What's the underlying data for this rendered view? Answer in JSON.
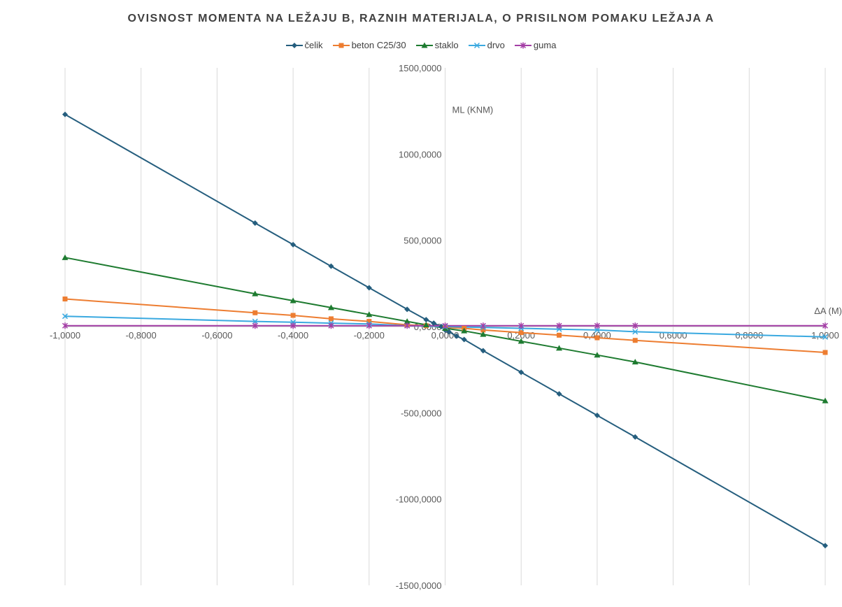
{
  "chart_data": {
    "type": "scatter",
    "title": "OVISNOST MOMENTA NA LEŽAJU B, RAZNIH MATERIJALA, O PRISILNOM POMAKU LEŽAJA A",
    "xlabel": "ΔA (M)",
    "ylabel": "ML (KNM)",
    "xlim": [
      -1.0,
      1.0
    ],
    "ylim": [
      -1500,
      1500
    ],
    "x_ticks": [
      -1.0,
      -0.8,
      -0.6,
      -0.4,
      -0.2,
      0.0,
      0.2,
      0.4,
      0.6,
      0.8,
      1.0
    ],
    "x_tick_labels": [
      "-1,0000",
      "-0,8000",
      "-0,6000",
      "-0,4000",
      "-0,2000",
      "0,0000",
      "0,2000",
      "0,4000",
      "0,6000",
      "0,8000",
      "1,0000"
    ],
    "y_ticks": [
      1500,
      1000,
      500,
      0,
      -500,
      -1000,
      -1500
    ],
    "y_tick_labels": [
      "1500,0000",
      "1000,0000",
      "500,0000",
      "0,0000",
      "-500,0000",
      "-1000,0000",
      "-1500,0000"
    ],
    "grid": "vertical",
    "legend_position": "top",
    "series": [
      {
        "name": "čelik",
        "color": "#255e7e",
        "marker": "diamond",
        "points": [
          [
            -1.0,
            1230
          ],
          [
            -0.5,
            600
          ],
          [
            -0.4,
            475
          ],
          [
            -0.3,
            350
          ],
          [
            -0.2,
            225
          ],
          [
            -0.1,
            100
          ],
          [
            -0.05,
            40
          ],
          [
            -0.03,
            20
          ],
          [
            -0.01,
            0
          ],
          [
            0.0,
            -20
          ],
          [
            0.01,
            -30
          ],
          [
            0.03,
            -55
          ],
          [
            0.05,
            -75
          ],
          [
            0.1,
            -140
          ],
          [
            0.2,
            -265
          ],
          [
            0.3,
            -390
          ],
          [
            0.4,
            -515
          ],
          [
            0.5,
            -640
          ],
          [
            1.0,
            -1270
          ]
        ]
      },
      {
        "name": "beton C25/30",
        "color": "#ed7d31",
        "marker": "square",
        "points": [
          [
            -1.0,
            160
          ],
          [
            -0.5,
            80
          ],
          [
            -0.4,
            65
          ],
          [
            -0.3,
            45
          ],
          [
            -0.2,
            30
          ],
          [
            -0.1,
            10
          ],
          [
            -0.05,
            5
          ],
          [
            0.0,
            -5
          ],
          [
            0.05,
            -10
          ],
          [
            0.1,
            -20
          ],
          [
            0.2,
            -35
          ],
          [
            0.3,
            -50
          ],
          [
            0.4,
            -65
          ],
          [
            0.5,
            -80
          ],
          [
            1.0,
            -150
          ]
        ]
      },
      {
        "name": "staklo",
        "color": "#1e7b30",
        "marker": "triangle",
        "points": [
          [
            -1.0,
            400
          ],
          [
            -0.5,
            190
          ],
          [
            -0.4,
            150
          ],
          [
            -0.3,
            110
          ],
          [
            -0.2,
            70
          ],
          [
            -0.1,
            30
          ],
          [
            -0.05,
            10
          ],
          [
            0.0,
            -10
          ],
          [
            0.05,
            -25
          ],
          [
            0.1,
            -45
          ],
          [
            0.2,
            -85
          ],
          [
            0.3,
            -125
          ],
          [
            0.4,
            -165
          ],
          [
            0.5,
            -205
          ],
          [
            1.0,
            -430
          ]
        ]
      },
      {
        "name": "drvo",
        "color": "#3aa9e0",
        "marker": "x",
        "points": [
          [
            -1.0,
            60
          ],
          [
            -0.5,
            30
          ],
          [
            -0.4,
            25
          ],
          [
            -0.3,
            20
          ],
          [
            -0.2,
            15
          ],
          [
            -0.1,
            5
          ],
          [
            0.0,
            0
          ],
          [
            0.1,
            -5
          ],
          [
            0.2,
            -10
          ],
          [
            0.3,
            -15
          ],
          [
            0.4,
            -20
          ],
          [
            0.5,
            -30
          ],
          [
            1.0,
            -60
          ]
        ]
      },
      {
        "name": "guma",
        "color": "#a43fa6",
        "marker": "star",
        "points": [
          [
            -1.0,
            5
          ],
          [
            -0.5,
            5
          ],
          [
            -0.4,
            5
          ],
          [
            -0.3,
            5
          ],
          [
            -0.2,
            5
          ],
          [
            -0.1,
            5
          ],
          [
            0.0,
            5
          ],
          [
            0.1,
            5
          ],
          [
            0.2,
            5
          ],
          [
            0.3,
            5
          ],
          [
            0.4,
            5
          ],
          [
            0.5,
            5
          ],
          [
            1.0,
            5
          ]
        ]
      }
    ]
  }
}
